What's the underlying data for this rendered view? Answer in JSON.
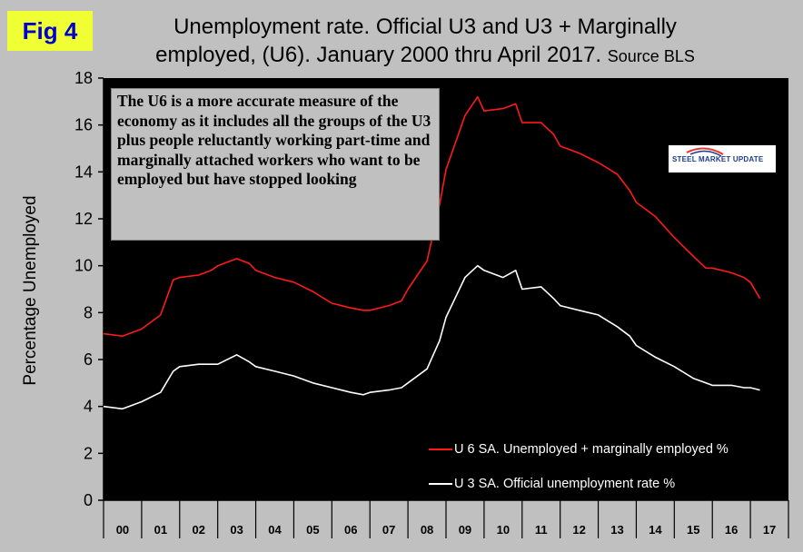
{
  "badge": "Fig 4",
  "title_line1": "Unemployment rate. Official U3 and U3 + Marginally",
  "title_line2": "employed, (U6). January 2000 thru April 2017.",
  "title_source": "Source BLS",
  "note": "The U6 is a more accurate measure of the economy as it includes all the groups of the U3 plus people reluctantly working part-time and marginally attached workers who want to be employed but have stopped looking",
  "logo_text": "STEEL MARKET UPDATE",
  "colors": {
    "u6": "#ff1a1a",
    "u3": "#ffffff",
    "plot_bg": "#000000",
    "page_bg": "#c0c0c0"
  },
  "chart_data": {
    "type": "line",
    "ylabel": "Percentage Unemployed",
    "ylim": [
      0,
      18
    ],
    "yticks": [
      "0",
      "2",
      "4",
      "6",
      "8",
      "10",
      "12",
      "14",
      "16",
      "18"
    ],
    "categories": [
      "00",
      "01",
      "02",
      "03",
      "04",
      "05",
      "06",
      "07",
      "08",
      "09",
      "10",
      "11",
      "12",
      "13",
      "14",
      "15",
      "16",
      "17"
    ],
    "legend_position": "bottom-right",
    "grid": false,
    "series": [
      {
        "name": "U 6 SA. Unemployed + marginally employed %",
        "color": "#ff1a1a",
        "points": [
          [
            2000,
            7.1
          ],
          [
            2000.5,
            7.0
          ],
          [
            2001,
            7.3
          ],
          [
            2001.5,
            7.9
          ],
          [
            2001.83,
            9.4
          ],
          [
            2002,
            9.5
          ],
          [
            2002.5,
            9.6
          ],
          [
            2002.83,
            9.8
          ],
          [
            2003,
            10.0
          ],
          [
            2003.5,
            10.3
          ],
          [
            2003.83,
            10.1
          ],
          [
            2004,
            9.8
          ],
          [
            2004.5,
            9.5
          ],
          [
            2005,
            9.3
          ],
          [
            2005.5,
            8.9
          ],
          [
            2006,
            8.4
          ],
          [
            2006.5,
            8.2
          ],
          [
            2006.83,
            8.1
          ],
          [
            2007,
            8.1
          ],
          [
            2007.5,
            8.3
          ],
          [
            2007.83,
            8.5
          ],
          [
            2008,
            9.0
          ],
          [
            2008.5,
            10.2
          ],
          [
            2008.83,
            12.6
          ],
          [
            2009,
            14.1
          ],
          [
            2009.5,
            16.4
          ],
          [
            2009.83,
            17.2
          ],
          [
            2010,
            16.6
          ],
          [
            2010.5,
            16.7
          ],
          [
            2010.83,
            16.9
          ],
          [
            2011,
            16.1
          ],
          [
            2011.5,
            16.1
          ],
          [
            2011.83,
            15.6
          ],
          [
            2012,
            15.1
          ],
          [
            2012.5,
            14.8
          ],
          [
            2013,
            14.4
          ],
          [
            2013.5,
            13.9
          ],
          [
            2013.83,
            13.2
          ],
          [
            2014,
            12.7
          ],
          [
            2014.5,
            12.1
          ],
          [
            2015,
            11.2
          ],
          [
            2015.5,
            10.4
          ],
          [
            2015.83,
            9.9
          ],
          [
            2016,
            9.9
          ],
          [
            2016.5,
            9.7
          ],
          [
            2016.83,
            9.5
          ],
          [
            2017,
            9.3
          ],
          [
            2017.25,
            8.6
          ]
        ]
      },
      {
        "name": "U 3 SA. Official unemployment rate %",
        "color": "#ffffff",
        "points": [
          [
            2000,
            4.0
          ],
          [
            2000.5,
            3.9
          ],
          [
            2001,
            4.2
          ],
          [
            2001.5,
            4.6
          ],
          [
            2001.83,
            5.5
          ],
          [
            2002,
            5.7
          ],
          [
            2002.5,
            5.8
          ],
          [
            2003,
            5.8
          ],
          [
            2003.5,
            6.2
          ],
          [
            2003.83,
            5.9
          ],
          [
            2004,
            5.7
          ],
          [
            2004.5,
            5.5
          ],
          [
            2005,
            5.3
          ],
          [
            2005.5,
            5.0
          ],
          [
            2006,
            4.8
          ],
          [
            2006.5,
            4.6
          ],
          [
            2006.83,
            4.5
          ],
          [
            2007,
            4.6
          ],
          [
            2007.5,
            4.7
          ],
          [
            2007.83,
            4.8
          ],
          [
            2008,
            5.0
          ],
          [
            2008.5,
            5.6
          ],
          [
            2008.83,
            6.8
          ],
          [
            2009,
            7.8
          ],
          [
            2009.5,
            9.5
          ],
          [
            2009.83,
            10.0
          ],
          [
            2010,
            9.8
          ],
          [
            2010.5,
            9.5
          ],
          [
            2010.83,
            9.8
          ],
          [
            2011,
            9.0
          ],
          [
            2011.5,
            9.1
          ],
          [
            2011.83,
            8.6
          ],
          [
            2012,
            8.3
          ],
          [
            2012.5,
            8.1
          ],
          [
            2013,
            7.9
          ],
          [
            2013.5,
            7.4
          ],
          [
            2013.83,
            7.0
          ],
          [
            2014,
            6.6
          ],
          [
            2014.5,
            6.1
          ],
          [
            2015,
            5.7
          ],
          [
            2015.5,
            5.2
          ],
          [
            2015.83,
            5.0
          ],
          [
            2016,
            4.9
          ],
          [
            2016.5,
            4.9
          ],
          [
            2016.83,
            4.8
          ],
          [
            2017,
            4.8
          ],
          [
            2017.25,
            4.7
          ]
        ]
      }
    ]
  }
}
